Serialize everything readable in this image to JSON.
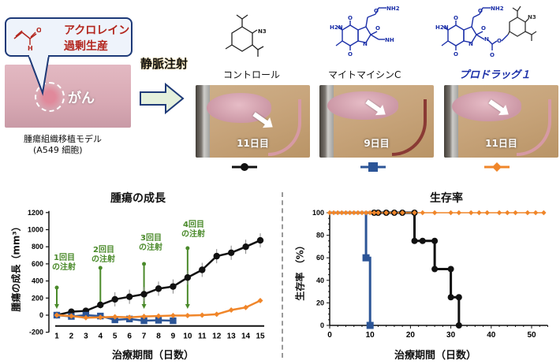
{
  "top_left": {
    "bubble_line1": "アクロレイン",
    "bubble_line2": "過剰生産",
    "acrolein_atoms": {
      "o": "O",
      "h": "H"
    },
    "tumor_label": "がん",
    "model_caption_line1": "腫瘍組織移植モデル",
    "model_caption_line2": "(A549 細胞)"
  },
  "injection": {
    "label": "静脈注射"
  },
  "compounds": [
    {
      "name": "コントロール",
      "color": "#111111",
      "day_label": "11日目",
      "legend_marker": "circle",
      "atoms": [
        "N3"
      ]
    },
    {
      "name": "マイトマイシンC",
      "color": "#1b2fa8",
      "day_label": "9日目",
      "legend_marker": "square",
      "atoms": [
        "H2N",
        "O",
        "O",
        "O",
        "NH2",
        "O",
        "N",
        "NH"
      ]
    },
    {
      "name": "プロドラッグ１",
      "color": "#1b2fa8",
      "day_label": "11日目",
      "legend_marker": "diamond",
      "atoms": [
        "H2N",
        "O",
        "O",
        "O",
        "NH2",
        "O",
        "N",
        "N",
        "O",
        "O",
        "N3"
      ]
    }
  ],
  "legend_colors": {
    "control": "#111111",
    "mitomycin": "#2c5597",
    "prodrug": "#f0862a"
  },
  "annotation_color": "#4a8a2a",
  "chart_data": [
    {
      "type": "line",
      "title": "腫瘍の成長",
      "xlabel": "治療期間（日数）",
      "ylabel": "腫瘍の成長（mm³）",
      "x": [
        1,
        2,
        3,
        4,
        5,
        6,
        7,
        8,
        9,
        10,
        11,
        12,
        13,
        14,
        15
      ],
      "yticks": [
        -200,
        0,
        200,
        400,
        600,
        800,
        1000,
        1200
      ],
      "ylim": [
        -200,
        1200
      ],
      "grid": false,
      "series": [
        {
          "name": "コントロール",
          "color": "#111111",
          "marker": "circle",
          "values": [
            0,
            40,
            50,
            120,
            185,
            215,
            245,
            310,
            335,
            440,
            530,
            690,
            730,
            800,
            875
          ]
        },
        {
          "name": "マイトマイシンC",
          "color": "#2c5597",
          "marker": "square",
          "values": [
            0,
            -15,
            0,
            -10,
            -55,
            -45,
            -65,
            -60,
            -65,
            null,
            null,
            null,
            null,
            null,
            null
          ]
        },
        {
          "name": "プロドラッグ１",
          "color": "#f0862a",
          "marker": "diamond",
          "values": [
            0,
            -10,
            -30,
            -25,
            -20,
            -25,
            -15,
            -10,
            -5,
            -5,
            0,
            10,
            60,
            90,
            170
          ]
        }
      ],
      "annotations": [
        {
          "text1": "1回目",
          "text2": "の注射",
          "day": 1
        },
        {
          "text1": "2回目",
          "text2": "の注射",
          "day": 4
        },
        {
          "text1": "3回目",
          "text2": "の注射",
          "day": 7
        },
        {
          "text1": "4回目",
          "text2": "の注射",
          "day": 10
        }
      ]
    },
    {
      "type": "line",
      "title": "生存率",
      "xlabel": "治療期間（日数）",
      "ylabel": "生存率 （%）",
      "xticks": [
        0,
        10,
        20,
        30,
        40,
        50
      ],
      "yticks": [
        0,
        20,
        40,
        60,
        80,
        100
      ],
      "xlim": [
        0,
        54
      ],
      "ylim": [
        0,
        100
      ],
      "grid": false,
      "series": [
        {
          "name": "コントロール",
          "color": "#111111",
          "marker": "circle",
          "steps": [
            [
              0,
              100
            ],
            [
              21,
              100
            ],
            [
              21,
              75
            ],
            [
              26,
              75
            ],
            [
              26,
              50
            ],
            [
              30,
              50
            ],
            [
              30,
              25
            ],
            [
              32,
              25
            ],
            [
              32,
              0
            ]
          ],
          "markers": [
            [
              11,
              100
            ],
            [
              12,
              100
            ],
            [
              14,
              100
            ],
            [
              16,
              100
            ],
            [
              18,
              100
            ],
            [
              21,
              100
            ],
            [
              21,
              75
            ],
            [
              23,
              75
            ],
            [
              26,
              75
            ],
            [
              26,
              50
            ],
            [
              30,
              50
            ],
            [
              30,
              25
            ],
            [
              32,
              25
            ],
            [
              32,
              0
            ]
          ]
        },
        {
          "name": "マイトマイシンC",
          "color": "#2c5597",
          "marker": "square",
          "steps": [
            [
              0,
              100
            ],
            [
              9,
              100
            ],
            [
              9,
              60
            ],
            [
              10,
              60
            ],
            [
              10,
              0
            ]
          ],
          "markers": [
            [
              9,
              60
            ],
            [
              10,
              0
            ]
          ]
        },
        {
          "name": "プロドラッグ１",
          "color": "#f0862a",
          "marker": "diamond",
          "steps": [
            [
              0,
              100
            ],
            [
              53,
              100
            ]
          ],
          "markers": [
            [
              0,
              100
            ],
            [
              1,
              100
            ],
            [
              2,
              100
            ],
            [
              3,
              100
            ],
            [
              4,
              100
            ],
            [
              5,
              100
            ],
            [
              6,
              100
            ],
            [
              7,
              100
            ],
            [
              8,
              100
            ],
            [
              9,
              100
            ],
            [
              10,
              100
            ],
            [
              11,
              100
            ],
            [
              12,
              100
            ],
            [
              14,
              100
            ],
            [
              16,
              100
            ],
            [
              18,
              100
            ],
            [
              21,
              100
            ],
            [
              23,
              100
            ],
            [
              26,
              100
            ],
            [
              30,
              100
            ],
            [
              32,
              100
            ],
            [
              35,
              100
            ],
            [
              37,
              100
            ],
            [
              39,
              100
            ],
            [
              42,
              100
            ],
            [
              44,
              100
            ],
            [
              46,
              100
            ],
            [
              49,
              100
            ],
            [
              51,
              100
            ],
            [
              53,
              100
            ]
          ]
        }
      ]
    }
  ]
}
